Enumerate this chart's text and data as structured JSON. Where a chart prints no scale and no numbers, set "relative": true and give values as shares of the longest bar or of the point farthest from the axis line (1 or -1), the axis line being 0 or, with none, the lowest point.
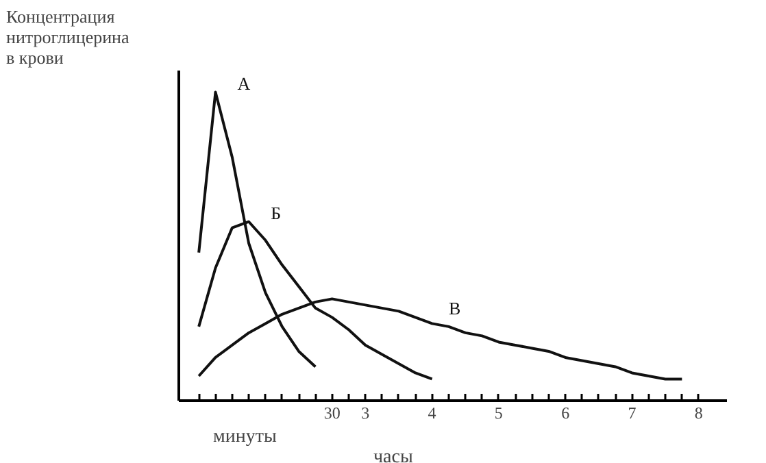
{
  "chart_data": {
    "type": "line",
    "relative": true,
    "ylabel": "Концентрация\nнитроглицерина\nв крови",
    "xlabel": "минуты",
    "annotations": [
      "часы"
    ],
    "categories": [
      null,
      null,
      null,
      null,
      null,
      null,
      null,
      null,
      "30",
      null,
      "3",
      null,
      null,
      null,
      "4",
      null,
      null,
      null,
      "5",
      null,
      null,
      null,
      "6",
      null,
      null,
      null,
      "7",
      null,
      null,
      null,
      "8"
    ],
    "legend": false,
    "marker": "none",
    "line_style": "solid",
    "series": [
      {
        "name": "А",
        "color": "#111111",
        "values": [
          0.48,
          1,
          0.79,
          0.51,
          0.35,
          0.24,
          0.16,
          0.11,
          null,
          null,
          null,
          null,
          null,
          null,
          null,
          null,
          null,
          null,
          null,
          null,
          null,
          null,
          null,
          null,
          null,
          null,
          null,
          null,
          null,
          null,
          null
        ]
      },
      {
        "name": "Б",
        "color": "#111111",
        "values": [
          0.24,
          0.43,
          0.56,
          0.58,
          0.52,
          0.44,
          0.37,
          0.3,
          0.27,
          0.23,
          0.18,
          0.15,
          0.12,
          0.09,
          0.07,
          null,
          null,
          null,
          null,
          null,
          null,
          null,
          null,
          null,
          null,
          null,
          null,
          null,
          null,
          null,
          null
        ]
      },
      {
        "name": "В",
        "color": "#111111",
        "values": [
          0.08,
          0.14,
          0.18,
          0.22,
          0.25,
          0.28,
          0.3,
          0.32,
          0.33,
          0.32,
          0.31,
          0.3,
          0.29,
          0.27,
          0.25,
          0.24,
          0.22,
          0.21,
          0.19,
          0.18,
          0.17,
          0.16,
          0.14,
          0.13,
          0.12,
          0.11,
          0.09,
          0.08,
          0.07,
          0.07,
          null
        ]
      }
    ]
  }
}
